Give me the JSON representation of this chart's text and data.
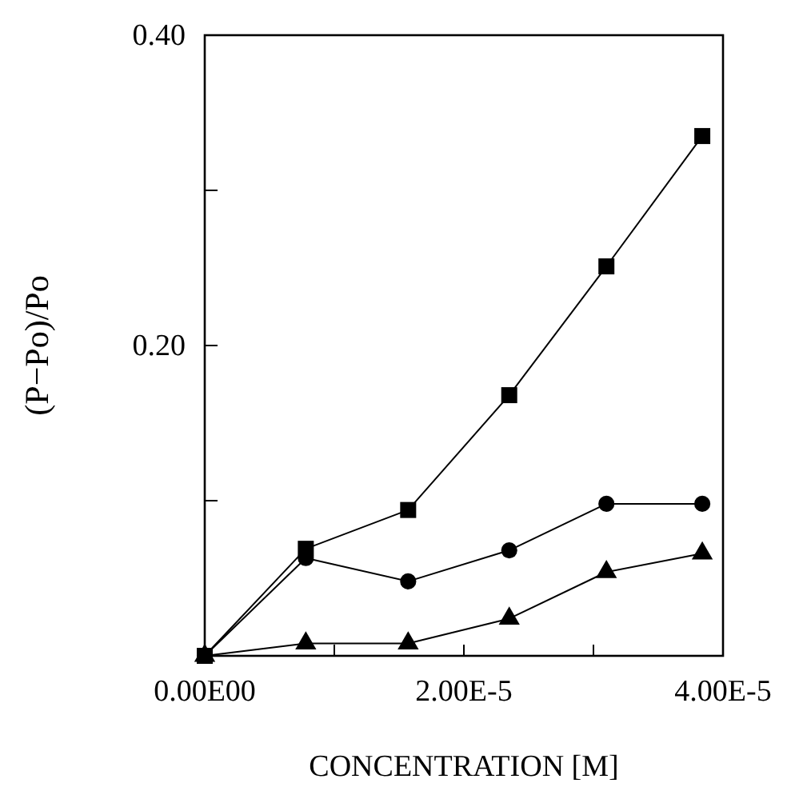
{
  "chart_data": {
    "type": "line",
    "xlabel": "CONCENTRATION [M]",
    "ylabel": "(P−Po)/Po",
    "x": [
      0,
      7.8e-06,
      1.57e-05,
      2.35e-05,
      3.1e-05,
      3.84e-05
    ],
    "series": [
      {
        "color": "#000000",
        "marker": "square",
        "values": [
          0,
          0.069,
          0.094,
          0.168,
          0.251,
          0.335
        ]
      },
      {
        "color": "#000000",
        "marker": "circle",
        "values": [
          0,
          0.063,
          0.048,
          0.068,
          0.098,
          0.098
        ]
      },
      {
        "color": "#000000",
        "marker": "triangle",
        "values": [
          0,
          0.008,
          0.008,
          0.024,
          0.054,
          0.066
        ]
      }
    ],
    "xlim": [
      0,
      4e-05
    ],
    "xticks": [
      {
        "value": 0,
        "label": "0.00E00"
      },
      {
        "value": 1e-05,
        "label": null
      },
      {
        "value": 2e-05,
        "label": "2.00E-5"
      },
      {
        "value": 3e-05,
        "label": null
      },
      {
        "value": 4e-05,
        "label": "4.00E-5"
      }
    ],
    "ylim": [
      0,
      0.4
    ],
    "yticks": [
      {
        "value": 0,
        "label": null
      },
      {
        "value": 0.1,
        "label": null
      },
      {
        "value": 0.2,
        "label": "0.20"
      },
      {
        "value": 0.3,
        "label": null
      },
      {
        "value": 0.4,
        "label": "0.40"
      }
    ],
    "grid": false,
    "line_style": "solid"
  }
}
